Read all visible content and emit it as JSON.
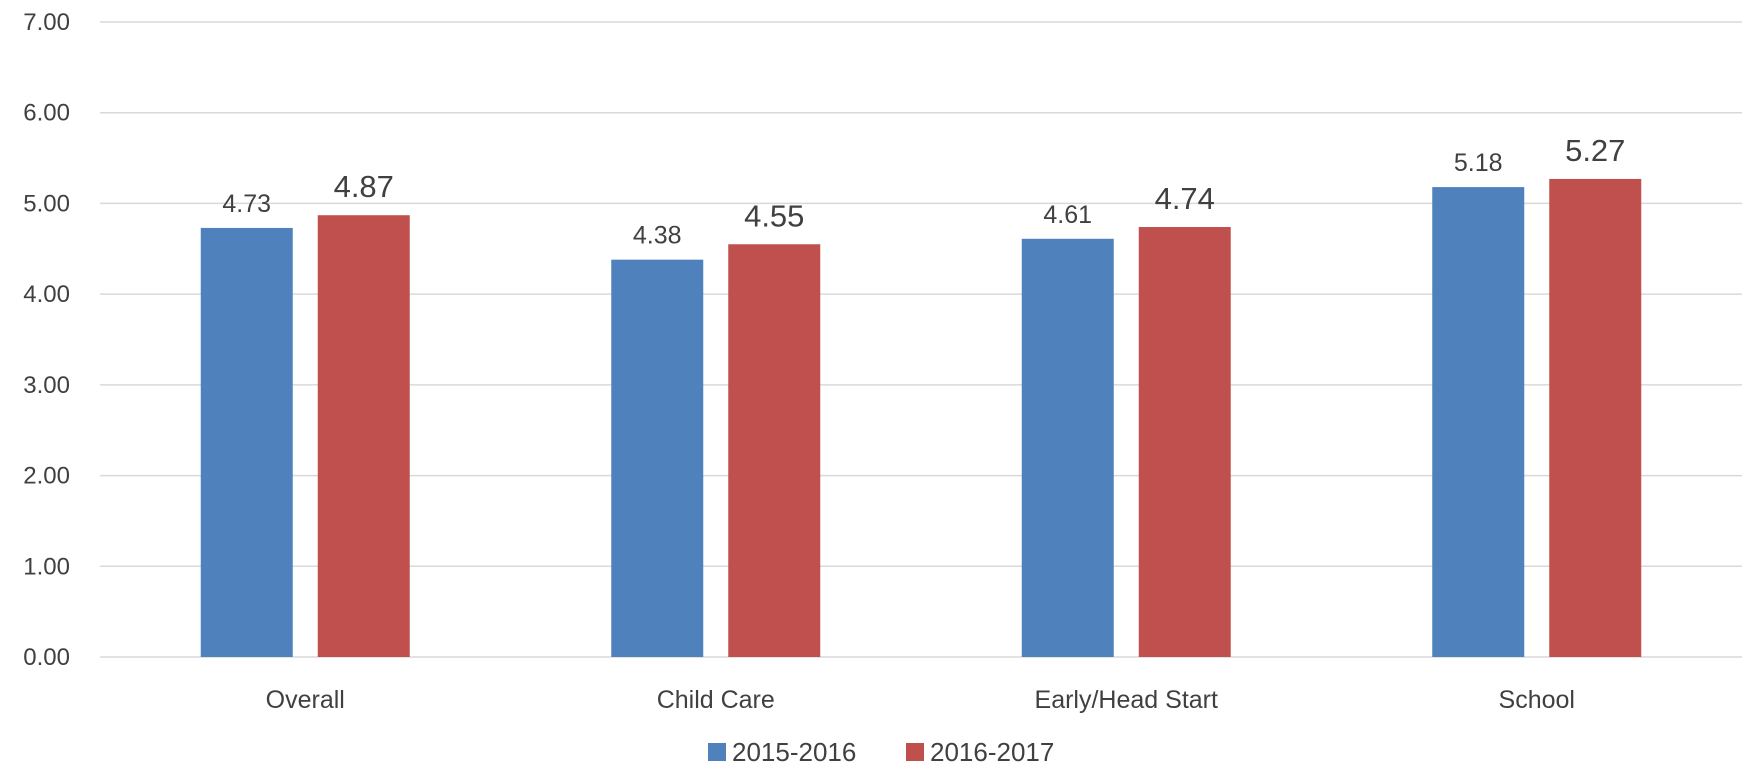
{
  "chart_data": {
    "type": "bar",
    "title": "",
    "xlabel": "",
    "ylabel": "",
    "categories": [
      "Overall",
      "Child Care",
      "Early/Head Start",
      "School"
    ],
    "series": [
      {
        "name": "2015-2016",
        "values": [
          4.73,
          4.38,
          4.61,
          5.18
        ],
        "labels": [
          "4.73",
          "4.38",
          "4.61",
          "5.18"
        ],
        "color": "#4F81BD"
      },
      {
        "name": "2016-2017",
        "values": [
          4.87,
          4.55,
          4.74,
          5.27
        ],
        "labels": [
          "4.87",
          "4.55",
          "4.74",
          "5.27"
        ],
        "color": "#C0504D"
      }
    ],
    "ylim": [
      0,
      7
    ],
    "yticks": [
      0,
      1,
      2,
      3,
      4,
      5,
      6,
      7
    ],
    "ytick_labels": [
      "0.00",
      "1.00",
      "2.00",
      "3.00",
      "4.00",
      "5.00",
      "6.00",
      "7.00"
    ],
    "grid": true,
    "legend_position": "bottom",
    "gridline_color": "#D9D9D9"
  }
}
